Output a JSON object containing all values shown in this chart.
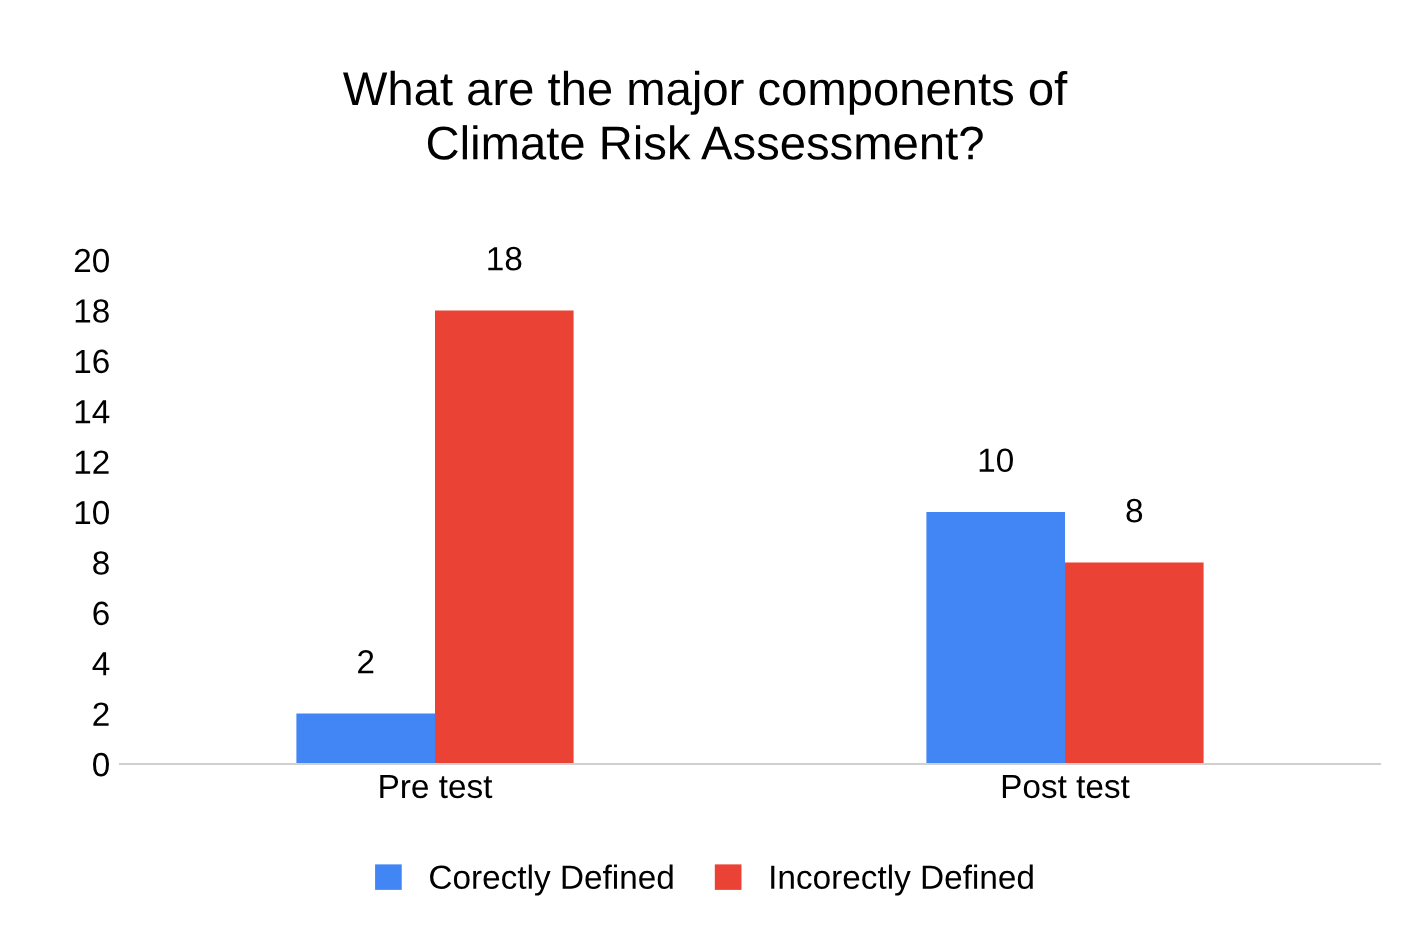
{
  "chart_data": {
    "type": "bar",
    "title": "What are the major components of\nClimate Risk Assessment?",
    "categories": [
      "Pre test",
      "Post test"
    ],
    "series": [
      {
        "name": "Corectly Defined",
        "color": "#4285f4",
        "values": [
          2,
          10
        ]
      },
      {
        "name": "Incorectly Defined",
        "color": "#ea4335",
        "values": [
          18,
          8
        ]
      }
    ],
    "ylim": [
      0,
      20
    ],
    "yticks": [
      0,
      2,
      4,
      6,
      8,
      10,
      12,
      14,
      16,
      18,
      20
    ],
    "grid": false,
    "legend": "bottom",
    "data_labels": true
  }
}
